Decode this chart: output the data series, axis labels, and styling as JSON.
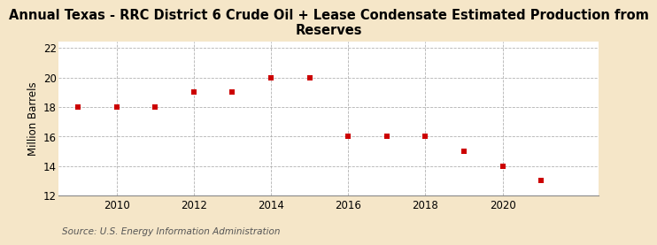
{
  "title": "Annual Texas - RRC District 6 Crude Oil + Lease Condensate Estimated Production from\nReserves",
  "ylabel": "Million Barrels",
  "source": "Source: U.S. Energy Information Administration",
  "years": [
    2009,
    2010,
    2011,
    2012,
    2013,
    2014,
    2015,
    2016,
    2017,
    2018,
    2019,
    2020,
    2021
  ],
  "values": [
    18.0,
    18.0,
    18.0,
    19.0,
    19.0,
    20.0,
    20.0,
    16.0,
    16.0,
    16.0,
    15.0,
    14.0,
    13.0
  ],
  "marker_color": "#CC0000",
  "marker": "s",
  "marker_size": 4,
  "outer_background": "#F5E6C8",
  "plot_background": "#FFFFFF",
  "grid_color": "#AAAAAA",
  "xlim": [
    2008.5,
    2022.5
  ],
  "ylim": [
    12,
    22.4
  ],
  "yticks": [
    12,
    14,
    16,
    18,
    20,
    22
  ],
  "xticks": [
    2010,
    2012,
    2014,
    2016,
    2018,
    2020
  ],
  "title_fontsize": 10.5,
  "axis_fontsize": 8.5,
  "source_fontsize": 7.5
}
